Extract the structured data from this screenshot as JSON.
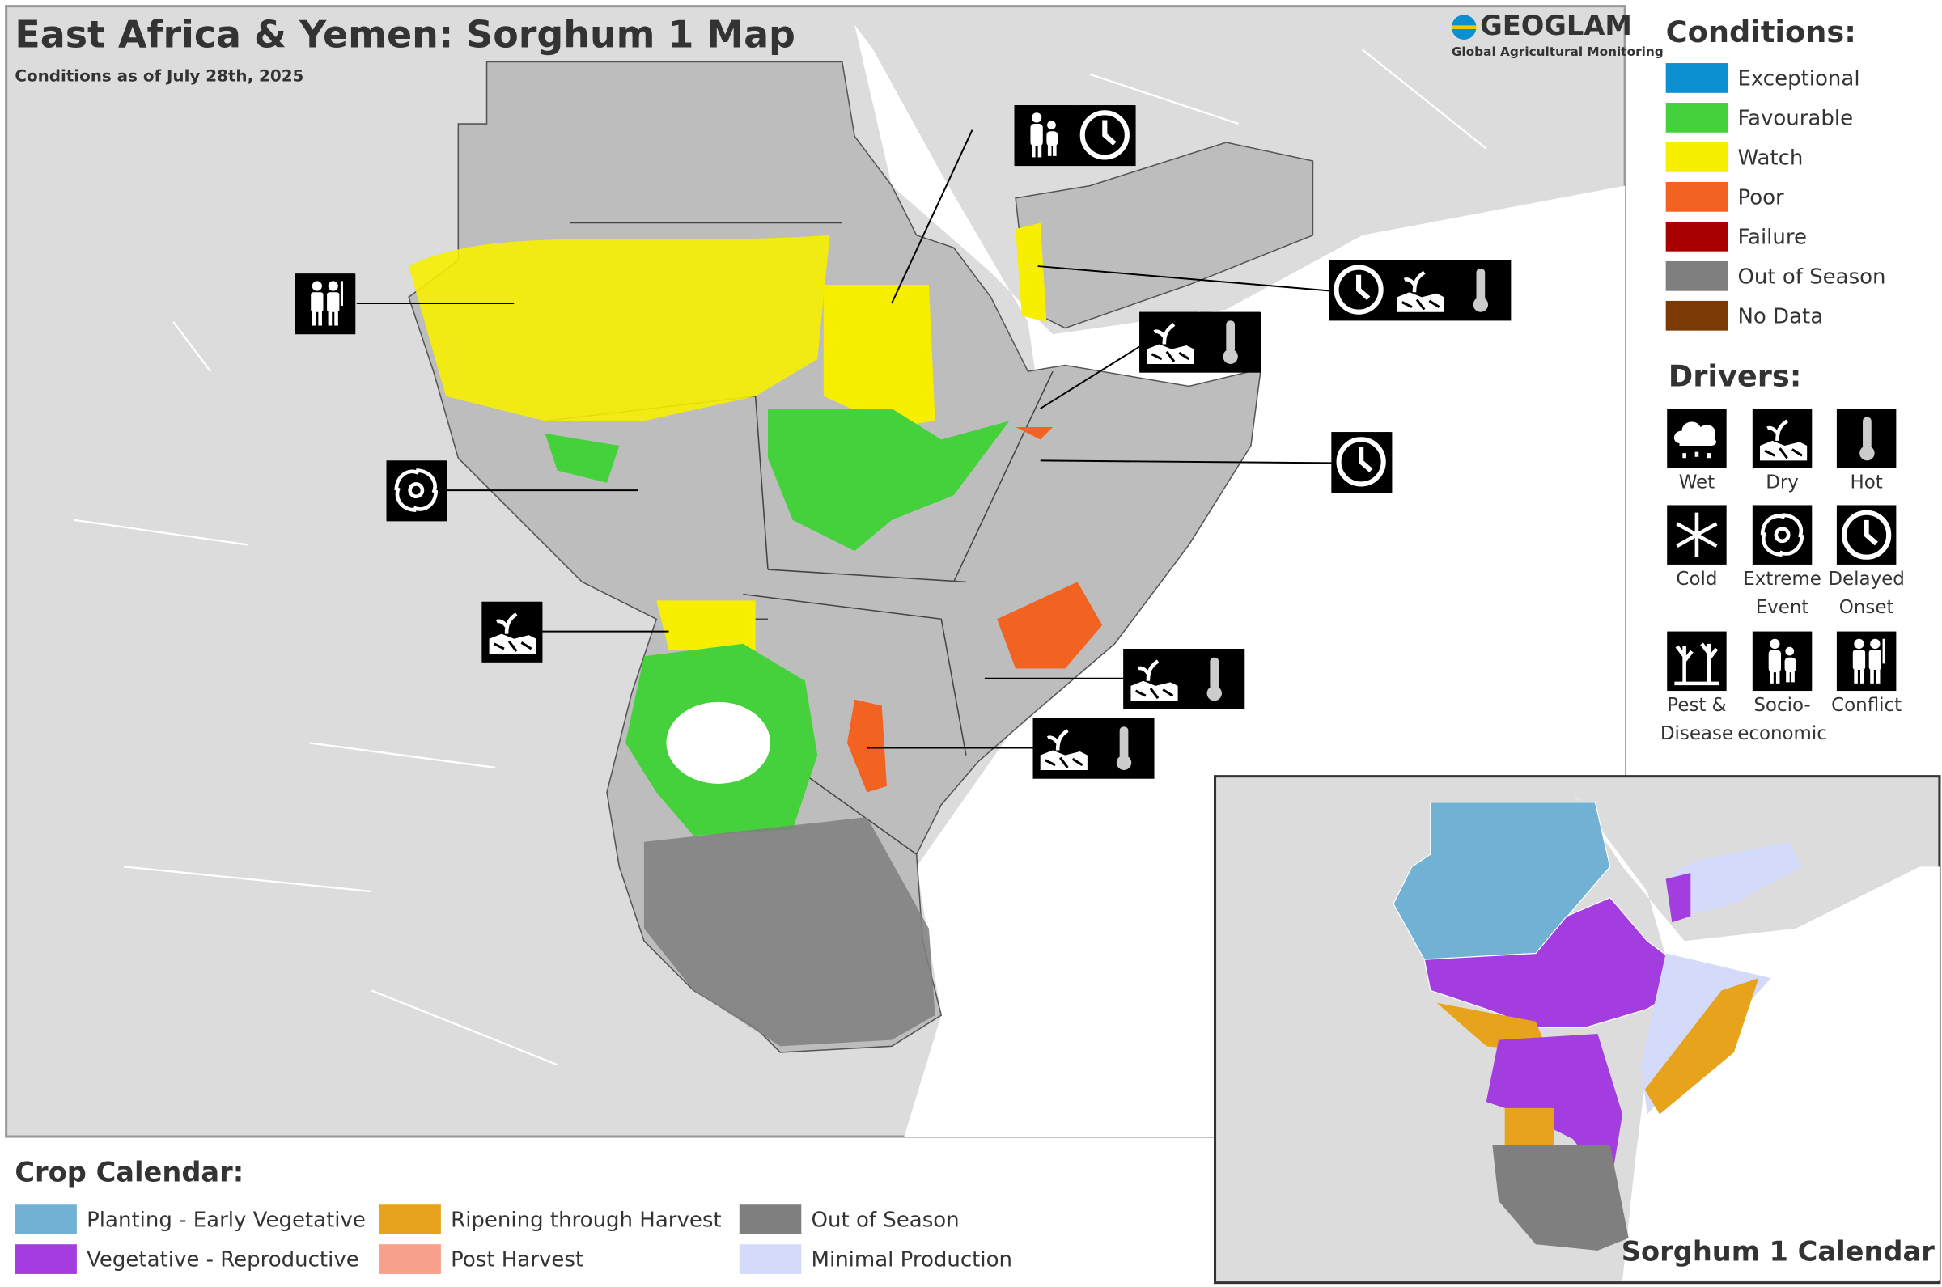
{
  "header": {
    "title": "East Africa & Yemen: Sorghum 1 Map",
    "subtitle": "Conditions as of July 28th, 2025",
    "logo": "GEOGLAM",
    "logo_subtitle": "Global Agricultural Monitoring"
  },
  "conditions_legend": {
    "title": "Conditions:",
    "items": [
      {
        "label": "Exceptional",
        "color": "#0b8fd0"
      },
      {
        "label": "Favourable",
        "color": "#44d13c"
      },
      {
        "label": "Watch",
        "color": "#f7ee00"
      },
      {
        "label": "Poor",
        "color": "#f26322"
      },
      {
        "label": "Failure",
        "color": "#a80000"
      },
      {
        "label": "Out of Season",
        "color": "#7f7f7f"
      },
      {
        "label": "No Data",
        "color": "#7b3a05"
      }
    ]
  },
  "drivers_legend": {
    "title": "Drivers:",
    "items": [
      {
        "label": [
          "Wet"
        ],
        "icon": "wet"
      },
      {
        "label": [
          "Dry"
        ],
        "icon": "dry"
      },
      {
        "label": [
          "Hot"
        ],
        "icon": "hot"
      },
      {
        "label": [
          "Cold"
        ],
        "icon": "cold"
      },
      {
        "label": [
          "Extreme",
          "Event"
        ],
        "icon": "extreme"
      },
      {
        "label": [
          "Delayed",
          "Onset"
        ],
        "icon": "delayed"
      },
      {
        "label": [
          "Pest &",
          "Disease"
        ],
        "icon": "pest"
      },
      {
        "label": [
          "Socio-",
          "economic"
        ],
        "icon": "socio"
      },
      {
        "label": [
          "Conflict"
        ],
        "icon": "conflict"
      }
    ]
  },
  "crop_calendar": {
    "title": "Crop Calendar:",
    "items": [
      {
        "label": "Planting - Early Vegetative",
        "color": "#71b2d4"
      },
      {
        "label": "Vegetative - Reproductive",
        "color": "#a43de0"
      },
      {
        "label": "Ripening through Harvest",
        "color": "#e8a31c"
      },
      {
        "label": "Post Harvest",
        "color": "#f7a08b"
      },
      {
        "label": "Out of Season",
        "color": "#7f7f7f"
      },
      {
        "label": "Minimal Production",
        "color": "#d4dbfa"
      }
    ]
  },
  "inset": {
    "title": "Sorghum 1 Calendar"
  }
}
